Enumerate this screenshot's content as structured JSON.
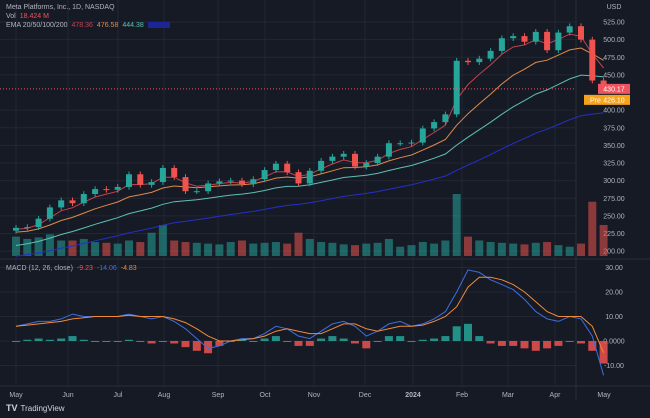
{
  "header": {
    "symbol_line": "Meta Platforms, Inc., 1D, NASDAQ",
    "vol_label": "Vol",
    "vol_value": "18.424 M",
    "ema_label": "EMA 20/50/100/200",
    "ema_values": [
      "478.36",
      "476.58",
      "444.38",
      ""
    ],
    "ema_colors": [
      "#c2434f",
      "#e08a4a",
      "#5fc0b4",
      "#2430c8"
    ]
  },
  "macd_legend": {
    "label": "MACD (12, 26, close)",
    "values": [
      "-9.23",
      "-14.06",
      "-4.83"
    ],
    "colors": [
      "#f0525f",
      "#3f6ee0",
      "#f08a3a"
    ]
  },
  "price_axis": {
    "currency": "USD",
    "ticks": [
      525,
      500,
      475,
      450,
      400,
      375,
      350,
      325,
      300,
      275,
      250,
      225,
      200
    ],
    "last_price_label": "430.17",
    "last_price": 430.17,
    "last_price_color": "#f0525f",
    "pre_label": "Pre",
    "pre_price_label": "426.10",
    "pre_color": "#f7a21b"
  },
  "macd_axis": {
    "ticks": [
      "30.00",
      "20.00",
      "10.00",
      "0.0000",
      "-10.00"
    ],
    "tick_values": [
      30,
      20,
      10,
      0,
      -10
    ]
  },
  "time_axis": {
    "labels": [
      "May",
      "Jun",
      "Jul",
      "Aug",
      "Sep",
      "Oct",
      "Nov",
      "Dec",
      "2024",
      "Feb",
      "Mar",
      "Apr",
      "May"
    ]
  },
  "footer": {
    "brand": "TradingView"
  },
  "colors": {
    "up": "#26a69a",
    "down": "#ef5350",
    "background": "#161a25",
    "grid": "#232735"
  },
  "chart_data": {
    "type": "candlestick",
    "interval_shown": "weekly approximation of daily chart",
    "dates": [
      "2023-05-01",
      "2023-05-08",
      "2023-05-15",
      "2023-05-22",
      "2023-05-29",
      "2023-06-05",
      "2023-06-12",
      "2023-06-19",
      "2023-06-26",
      "2023-07-03",
      "2023-07-10",
      "2023-07-17",
      "2023-07-24",
      "2023-07-31",
      "2023-08-07",
      "2023-08-14",
      "2023-08-21",
      "2023-08-28",
      "2023-09-04",
      "2023-09-11",
      "2023-09-18",
      "2023-09-25",
      "2023-10-02",
      "2023-10-09",
      "2023-10-16",
      "2023-10-23",
      "2023-10-30",
      "2023-11-06",
      "2023-11-13",
      "2023-11-20",
      "2023-11-27",
      "2023-12-04",
      "2023-12-11",
      "2023-12-18",
      "2023-12-25",
      "2024-01-01",
      "2024-01-08",
      "2024-01-15",
      "2024-01-22",
      "2024-01-29",
      "2024-02-05",
      "2024-02-12",
      "2024-02-19",
      "2024-02-26",
      "2024-03-04",
      "2024-03-11",
      "2024-03-18",
      "2024-03-25",
      "2024-04-01",
      "2024-04-08",
      "2024-04-15",
      "2024-04-22",
      "2024-04-29"
    ],
    "close": [
      233,
      234,
      246,
      262,
      272,
      268,
      281,
      288,
      287,
      291,
      309,
      294,
      298,
      318,
      305,
      285,
      285,
      296,
      299,
      300,
      295,
      302,
      315,
      324,
      312,
      296,
      314,
      328,
      334,
      338,
      320,
      325,
      334,
      353,
      353,
      354,
      374,
      383,
      394,
      470,
      468,
      473,
      484,
      502,
      505,
      497,
      511,
      485,
      510,
      519,
      500,
      442,
      430
    ],
    "volume_millions": [
      25,
      22,
      24,
      28,
      20,
      20,
      22,
      18,
      17,
      16,
      20,
      18,
      30,
      40,
      20,
      18,
      17,
      16,
      15,
      18,
      20,
      16,
      17,
      18,
      16,
      30,
      22,
      18,
      17,
      15,
      14,
      16,
      17,
      22,
      12,
      14,
      18,
      16,
      20,
      80,
      25,
      20,
      18,
      17,
      16,
      15,
      17,
      18,
      14,
      12,
      16,
      70,
      40
    ],
    "macd": [
      6,
      7,
      8,
      8,
      9,
      11,
      10,
      10,
      10,
      10,
      11,
      10,
      9,
      10,
      8,
      5,
      1,
      -3,
      -2,
      0,
      1,
      1,
      3,
      6,
      5,
      2,
      1,
      4,
      7,
      8,
      6,
      2,
      4,
      7,
      8,
      6,
      7,
      9,
      12,
      20,
      29,
      28,
      25,
      23,
      21,
      17,
      12,
      9,
      8,
      10,
      9,
      2,
      -14
    ],
    "signal": [
      6,
      6.5,
      7,
      7.5,
      8,
      9,
      9.5,
      10,
      10,
      10,
      10.5,
      10,
      10,
      10,
      9,
      7.5,
      5,
      2,
      0,
      0,
      0.5,
      1,
      2,
      4,
      5,
      4,
      3,
      3,
      5,
      7,
      7,
      5,
      4,
      5,
      6,
      6,
      6.5,
      8,
      10,
      14,
      22,
      26,
      26,
      25,
      23,
      20,
      16,
      12,
      10,
      10,
      10,
      6,
      -4.8
    ],
    "price_range": [
      190,
      535
    ],
    "macd_range": [
      -15,
      32
    ],
    "grid": true
  }
}
